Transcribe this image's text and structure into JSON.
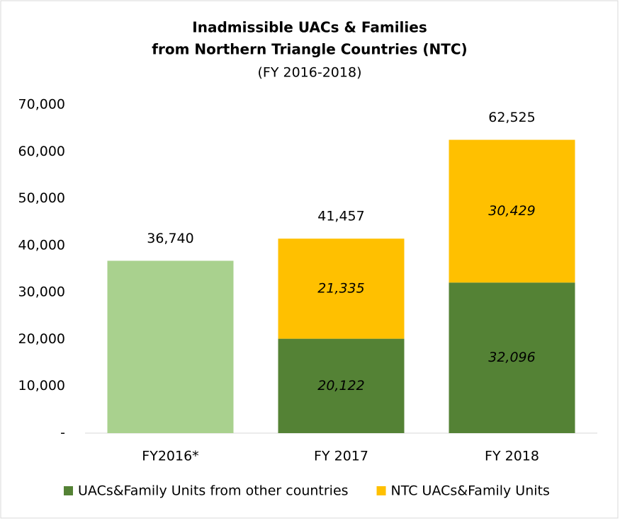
{
  "chart_data": {
    "type": "stacked-bar",
    "title": [
      "Inadmissible UACs & Families",
      "from Northern Triangle Countries (NTC)"
    ],
    "subtitle": "(FY 2016-2018)",
    "categories": [
      "FY2016*",
      "FY 2017",
      "FY 2018"
    ],
    "series": [
      {
        "color": "#a9d18e",
        "values": [
          36740,
          null,
          null
        ]
      },
      {
        "name": "UACs&Family Units from other countries",
        "color": "#548235",
        "values": [
          null,
          20122,
          32096
        ],
        "value_labels": [
          null,
          "20,122",
          "32,096"
        ]
      },
      {
        "name": "NTC UACs&Family Units",
        "color": "#ffc000",
        "values": [
          null,
          21335,
          30429
        ],
        "value_labels": [
          null,
          "21,335",
          "30,429"
        ]
      }
    ],
    "total_values": [
      36740,
      41457,
      62525
    ],
    "total_labels": [
      "36,740",
      "41,457",
      "62,525"
    ],
    "ylim": [
      0,
      70000
    ],
    "yticks": [
      {
        "value": 0,
        "label": "-"
      },
      {
        "value": 10000,
        "label": "10,000"
      },
      {
        "value": 20000,
        "label": "20,000"
      },
      {
        "value": 30000,
        "label": "30,000"
      },
      {
        "value": 40000,
        "label": "40,000"
      },
      {
        "value": 50000,
        "label": "50,000"
      },
      {
        "value": 60000,
        "label": "60,000"
      },
      {
        "value": 70000,
        "label": "70,000"
      }
    ],
    "legend": "bottom"
  }
}
